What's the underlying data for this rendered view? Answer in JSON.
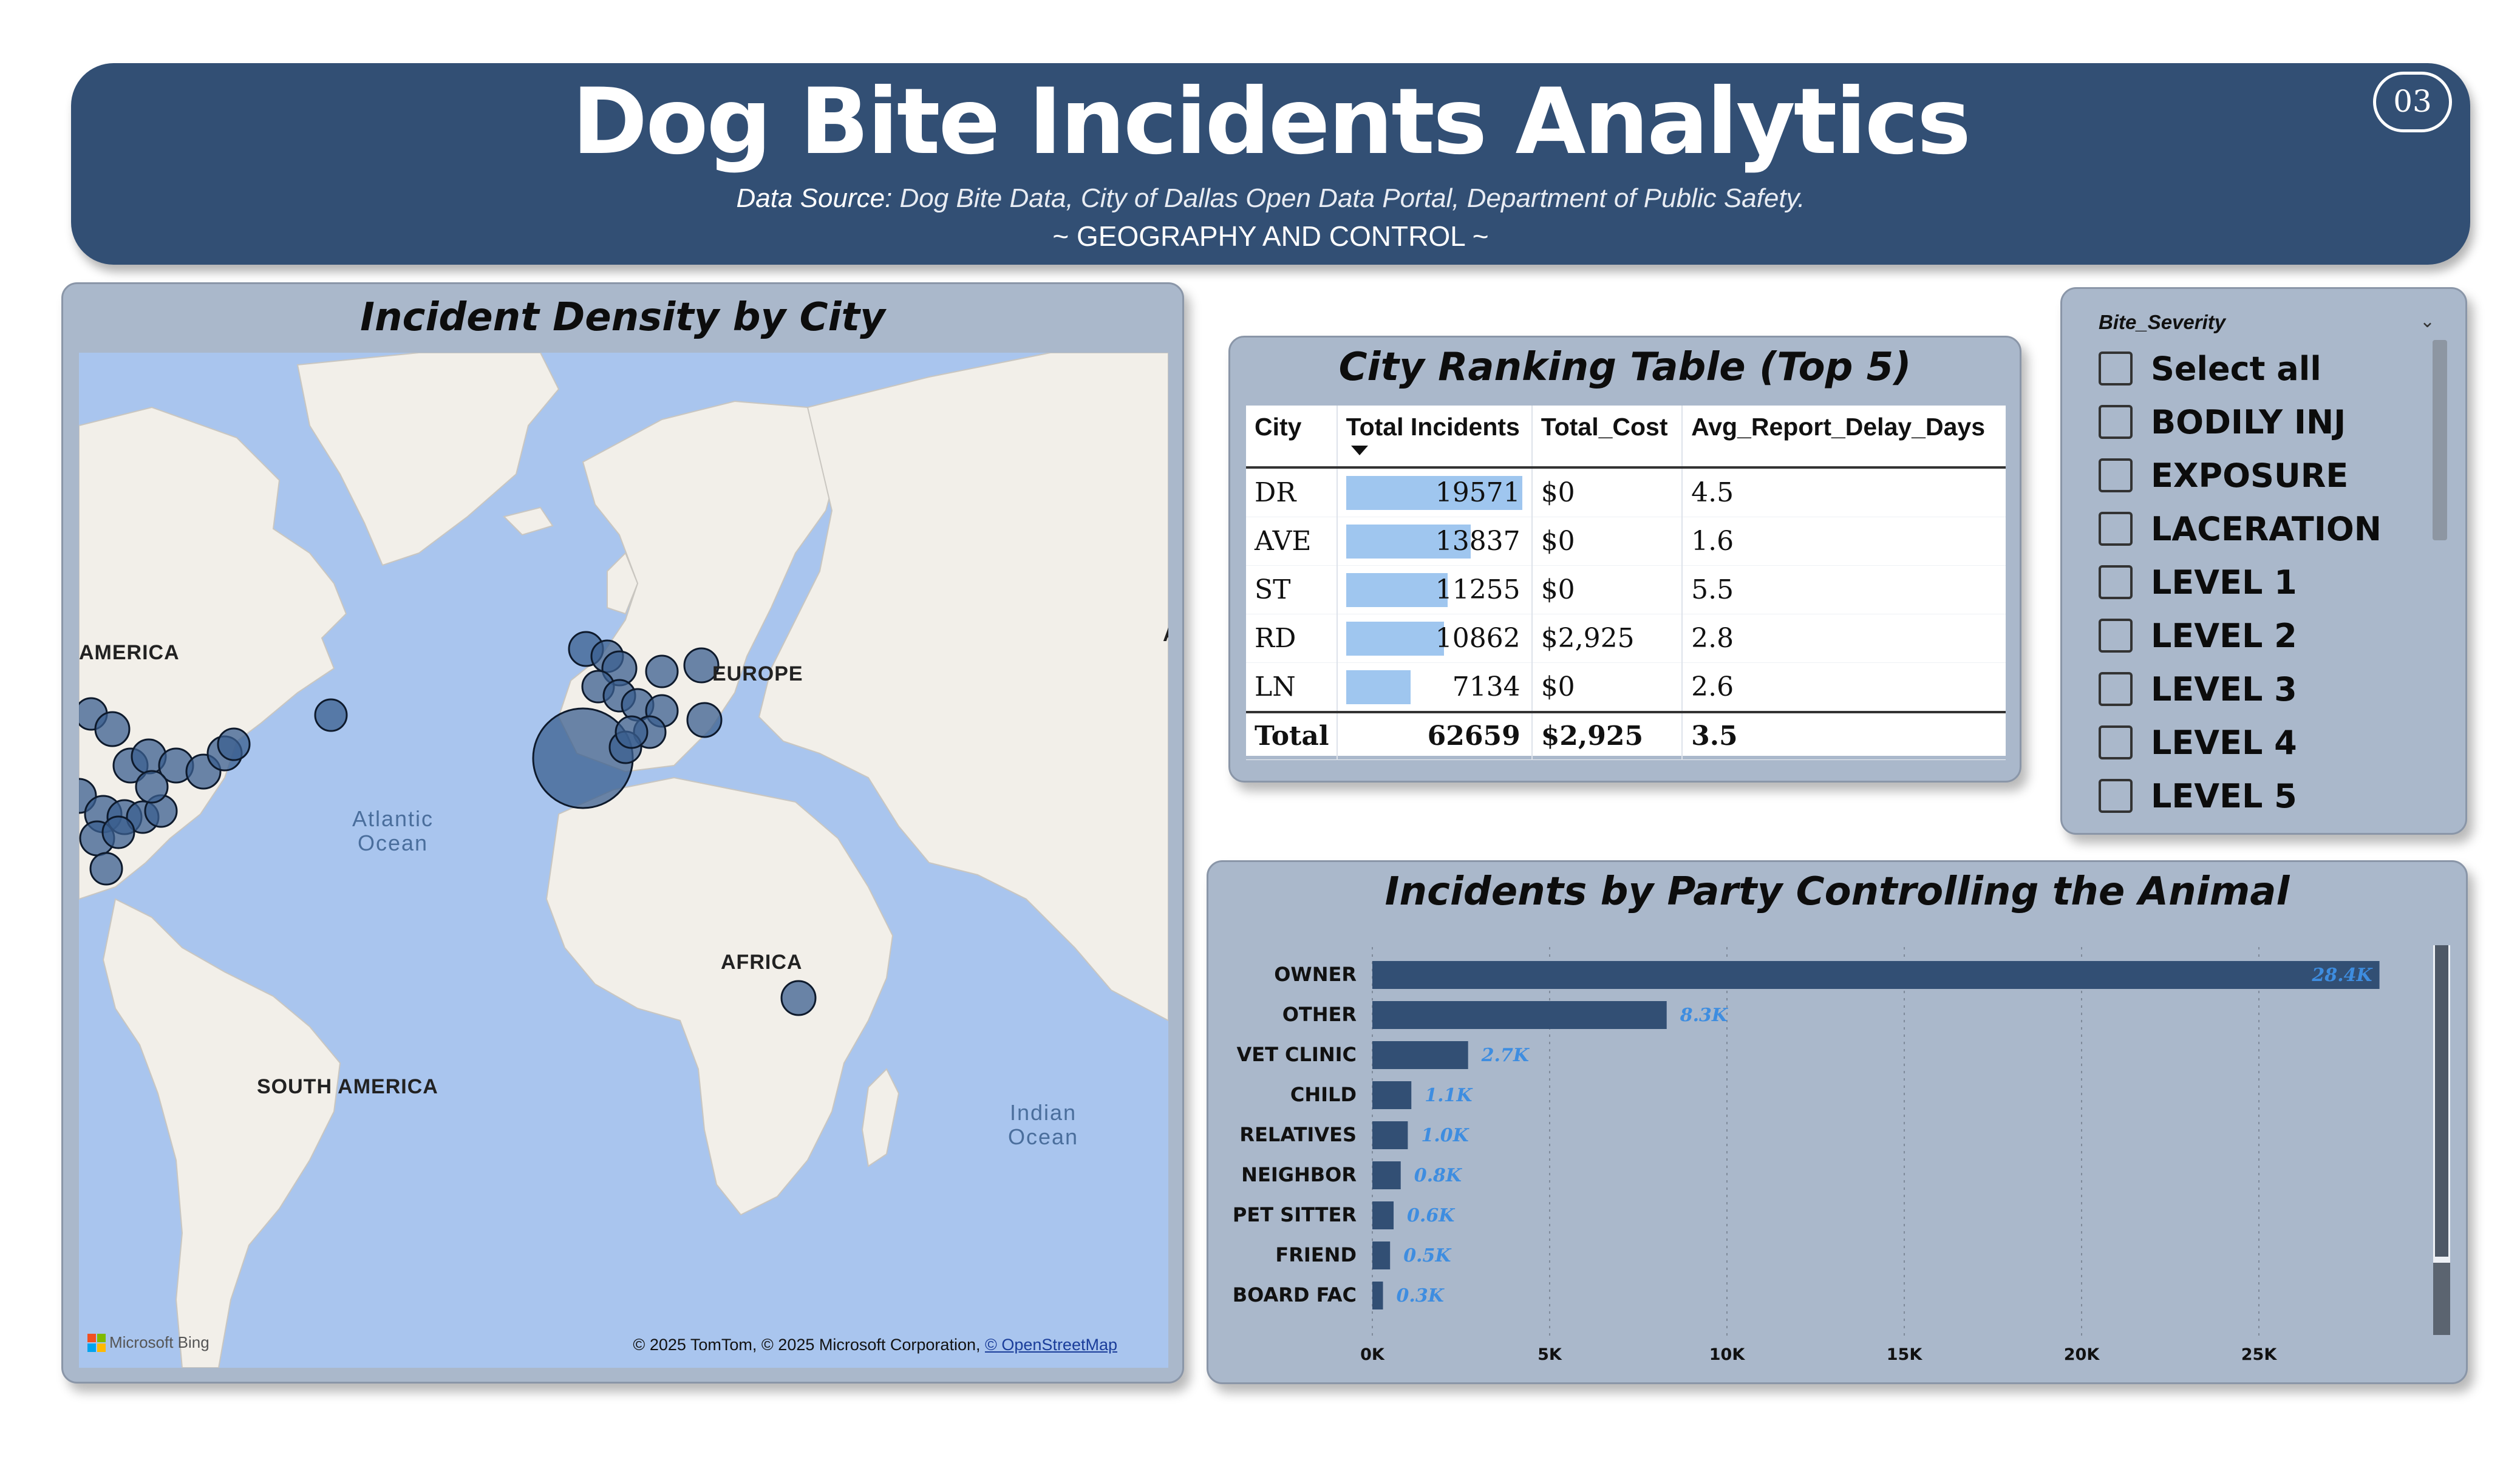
{
  "header": {
    "title": "Dog Bite Incidents Analytics",
    "source_label": "Data Source:",
    "source_text": " Dog Bite Data, City of Dallas Open Data Portal, Department of Public Safety.",
    "section": "~ GEOGRAPHY AND CONTROL ~",
    "page_number": "03"
  },
  "map": {
    "title": "Incident Density by City",
    "labels": {
      "north_america": "AMERICA",
      "europe": "EUROPE",
      "africa": "AFRICA",
      "south_america": "SOUTH AMERICA",
      "atlantic": "Atlantic\nOcean",
      "indian": "Indian\nOcean",
      "asia_letter": "A"
    },
    "bing": "Microsoft Bing",
    "copyright": "© 2025 TomTom, © 2025 Microsoft Corporation, ",
    "copyright_link": "© OpenStreetMap",
    "bubble_fill": "#3b5f8f",
    "land_color": "#f2efe9",
    "water_color": "#a9c5ee"
  },
  "table": {
    "title": "City Ranking Table (Top 5)",
    "columns": [
      "City",
      "Total Incidents",
      "Total_Cost",
      "Avg_Report_Delay_Days"
    ],
    "max_incidents": 19571,
    "rows": [
      {
        "city": "DR",
        "incidents": "19571",
        "incidents_value": 19571,
        "cost": "$0",
        "delay": "4.5"
      },
      {
        "city": "AVE",
        "incidents": "13837",
        "incidents_value": 13837,
        "cost": "$0",
        "delay": "1.6"
      },
      {
        "city": "ST",
        "incidents": "11255",
        "incidents_value": 11255,
        "cost": "$0",
        "delay": "5.5"
      },
      {
        "city": "RD",
        "incidents": "10862",
        "incidents_value": 10862,
        "cost": "$2,925",
        "delay": "2.8"
      },
      {
        "city": "LN",
        "incidents": "7134",
        "incidents_value": 7134,
        "cost": "$0",
        "delay": "2.6"
      }
    ],
    "total": {
      "label": "Total",
      "incidents": "62659",
      "cost": "$2,925",
      "delay": "3.5"
    },
    "bar_color": "#9fc6ef"
  },
  "slicer": {
    "title": "Bite_Severity",
    "items": [
      "Select all",
      "BODILY INJ",
      "EXPOSURE",
      "LACERATION",
      "LEVEL 1",
      "LEVEL 2",
      "LEVEL 3",
      "LEVEL 4",
      "LEVEL 5"
    ]
  },
  "chart_data": {
    "type": "bar",
    "orientation": "horizontal",
    "title": "Incidents by Party Controlling the Animal",
    "categories": [
      "OWNER",
      "OTHER",
      "VET CLINIC",
      "CHILD",
      "RELATIVES",
      "NEIGHBOR",
      "PET SITTER",
      "FRIEND",
      "BOARD FAC"
    ],
    "values": [
      28400,
      8300,
      2700,
      1100,
      1000,
      800,
      600,
      500,
      300
    ],
    "data_labels": [
      "28.4K",
      "8.3K",
      "2.7K",
      "1.1K",
      "1.0K",
      "0.8K",
      "0.6K",
      "0.5K",
      "0.3K"
    ],
    "x_ticks": [
      0,
      5000,
      10000,
      15000,
      20000,
      25000
    ],
    "x_tick_labels": [
      "0K",
      "5K",
      "10K",
      "15K",
      "20K",
      "25K"
    ],
    "xlim": [
      0,
      29000
    ],
    "grid": true,
    "bar_color": "#324f74",
    "label_color": "#3e8de0"
  }
}
